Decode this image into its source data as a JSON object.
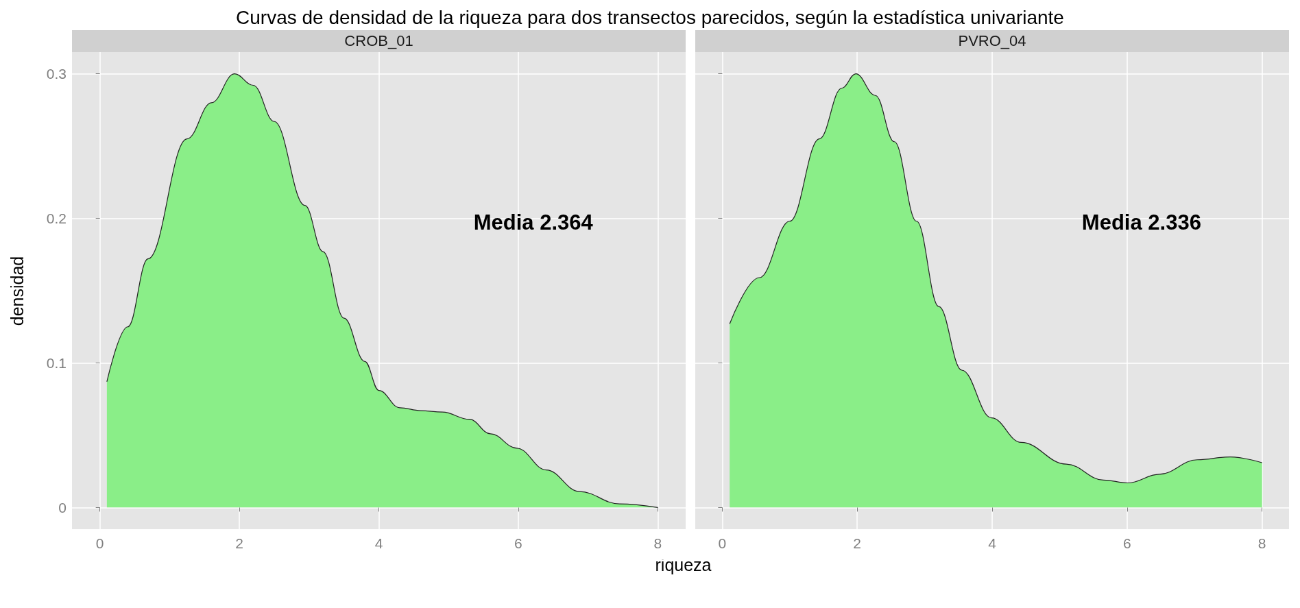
{
  "chart_data": [
    {
      "type": "area",
      "title": "Curvas de densidad de la riqueza para dos transectos parecidos, según la estadística univariante",
      "subtitle": "CROB_01",
      "xlabel": "riqueza",
      "ylabel": "densidad",
      "series": [
        {
          "color": "#8aee88",
          "x": [
            0.1,
            0.4,
            0.69,
            1.25,
            1.6,
            1.93,
            2.2,
            2.5,
            2.94,
            3.2,
            3.5,
            3.8,
            4.0,
            4.3,
            4.6,
            4.91,
            5.3,
            5.6,
            5.98,
            6.4,
            6.88,
            7.45,
            8.0
          ],
          "values": [
            0.087,
            0.125,
            0.172,
            0.255,
            0.28,
            0.3,
            0.292,
            0.267,
            0.209,
            0.177,
            0.131,
            0.101,
            0.081,
            0.069,
            0.067,
            0.066,
            0.061,
            0.051,
            0.041,
            0.026,
            0.011,
            0.0025,
            0.0
          ]
        }
      ],
      "xlim": [
        -0.4,
        8.4
      ],
      "xticks": [
        0,
        2,
        4,
        6,
        8
      ],
      "ylim": [
        -0.015,
        0.315
      ],
      "yticks": [
        0.0,
        0.1,
        0.2,
        0.3
      ],
      "grid": true,
      "annotations": [
        "Media 2.364"
      ]
    },
    {
      "type": "area",
      "subtitle": "PVRO_04",
      "series": [
        {
          "color": "#8aee88",
          "x": [
            0.11,
            0.55,
            1.0,
            1.44,
            1.77,
            1.98,
            2.27,
            2.55,
            2.88,
            3.21,
            3.55,
            3.99,
            4.43,
            5.1,
            5.65,
            6.01,
            6.48,
            7.04,
            7.53,
            8.0
          ],
          "values": [
            0.127,
            0.159,
            0.198,
            0.255,
            0.29,
            0.3,
            0.285,
            0.253,
            0.198,
            0.139,
            0.095,
            0.062,
            0.045,
            0.03,
            0.019,
            0.017,
            0.023,
            0.033,
            0.035,
            0.031
          ]
        }
      ],
      "xlim": [
        -0.4,
        8.4
      ],
      "xticks": [
        0,
        2,
        4,
        6,
        8
      ],
      "ylim": [
        -0.015,
        0.315
      ],
      "yticks": [
        0.0,
        0.1,
        0.2,
        0.3
      ],
      "grid": true,
      "tick_labels": "x",
      "annotations": [
        "Media 2.336"
      ]
    }
  ]
}
